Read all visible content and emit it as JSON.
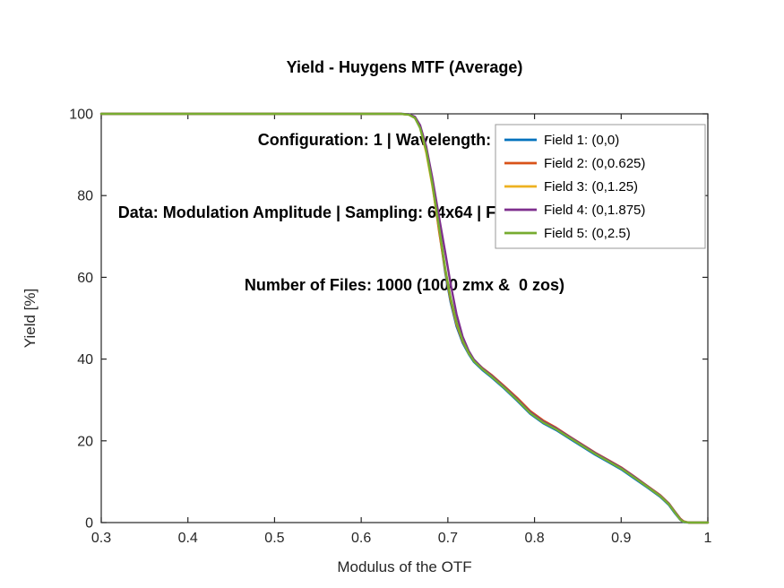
{
  "chart_data": {
    "type": "line",
    "title_lines": [
      "Yield - Huygens MTF (Average)",
      "Configuration: 1 | Wavelength: 590 nm",
      "Data: Modulation Amplitude | Sampling: 64x64 | Frequency: 100 cycles/mm",
      "Number of Files: 1000 (1000 zmx &  0 zos)"
    ],
    "xlabel": "Modulus of the OTF",
    "ylabel": "Yield [%]",
    "xlim": [
      0.3,
      1
    ],
    "ylim": [
      0,
      100
    ],
    "xticks": [
      0.3,
      0.4,
      0.5,
      0.6,
      0.7,
      0.8,
      0.9,
      1
    ],
    "xtick_labels": [
      "0.3",
      "0.4",
      "0.5",
      "0.6",
      "0.7",
      "0.8",
      "0.9",
      "1"
    ],
    "yticks": [
      0,
      20,
      40,
      60,
      80,
      100
    ],
    "grid": false,
    "legend_position": "upper-right-inside",
    "axis_color": "#262626",
    "x": [
      0.3,
      0.55,
      0.62,
      0.645,
      0.655,
      0.662,
      0.668,
      0.675,
      0.682,
      0.69,
      0.697,
      0.703,
      0.71,
      0.717,
      0.724,
      0.73,
      0.74,
      0.75,
      0.765,
      0.78,
      0.795,
      0.81,
      0.825,
      0.84,
      0.855,
      0.87,
      0.885,
      0.9,
      0.915,
      0.93,
      0.945,
      0.955,
      0.962,
      0.968,
      0.972,
      0.978,
      1.0
    ],
    "series": [
      {
        "name": "Field 1: (0,0)",
        "color": "#0072BD",
        "values": [
          100,
          100,
          100,
          100,
          99.9,
          99.2,
          97,
          91.5,
          83.5,
          71.5,
          61,
          54,
          48,
          44,
          41.2,
          39.3,
          37.3,
          35.6,
          32.8,
          29.8,
          26.6,
          24.3,
          22.6,
          20.6,
          18.6,
          16.6,
          14.8,
          13,
          10.8,
          8.6,
          6.3,
          4.3,
          2.3,
          0.7,
          0.1,
          0,
          0
        ]
      },
      {
        "name": "Field 2: (0,0.625)",
        "color": "#D95319",
        "values": [
          100,
          100,
          100,
          100,
          99.8,
          99,
          96.8,
          91,
          83,
          71,
          61.5,
          54.5,
          48.5,
          44.3,
          41.6,
          39.8,
          37.8,
          36.2,
          33.4,
          30.5,
          27.3,
          25,
          23.2,
          21.1,
          19.1,
          17.1,
          15.3,
          13.5,
          11.3,
          9,
          6.7,
          4.7,
          2.7,
          1,
          0.3,
          0,
          0
        ]
      },
      {
        "name": "Field 3: (0,1.25)",
        "color": "#EDB120",
        "values": [
          100,
          100,
          100,
          100,
          99.8,
          99.1,
          96.6,
          90.5,
          82.5,
          71.8,
          62,
          55,
          48.8,
          44.6,
          41.4,
          39.6,
          37.6,
          35.9,
          33.1,
          30.1,
          26.9,
          24.6,
          22.9,
          20.9,
          18.9,
          16.9,
          15.1,
          13.3,
          11.1,
          8.8,
          6.5,
          4.5,
          2.5,
          0.8,
          0.2,
          0,
          0
        ]
      },
      {
        "name": "Field 4: (0,1.875)",
        "color": "#7E2F8E",
        "values": [
          100,
          100,
          100,
          100,
          99.9,
          99.3,
          97.2,
          92,
          84.5,
          74.5,
          66,
          58.5,
          51,
          45.5,
          42,
          39.9,
          37.7,
          36,
          33.2,
          30.2,
          27,
          24.7,
          23,
          21,
          19,
          17,
          15.2,
          13.4,
          11.2,
          8.9,
          6.6,
          4.6,
          2.6,
          0.9,
          0.2,
          0,
          0
        ]
      },
      {
        "name": "Field 5: (0,2.5)",
        "color": "#77AC30",
        "values": [
          100,
          100,
          100,
          100,
          99.8,
          99,
          96.5,
          91,
          83,
          72,
          62,
          55,
          49,
          44.5,
          41.5,
          39.5,
          37.5,
          35.8,
          33,
          30,
          26.8,
          24.5,
          22.8,
          20.8,
          18.8,
          16.8,
          15,
          13.2,
          11,
          8.8,
          6.5,
          4.5,
          2.5,
          0.8,
          0.2,
          0,
          0
        ]
      }
    ]
  }
}
